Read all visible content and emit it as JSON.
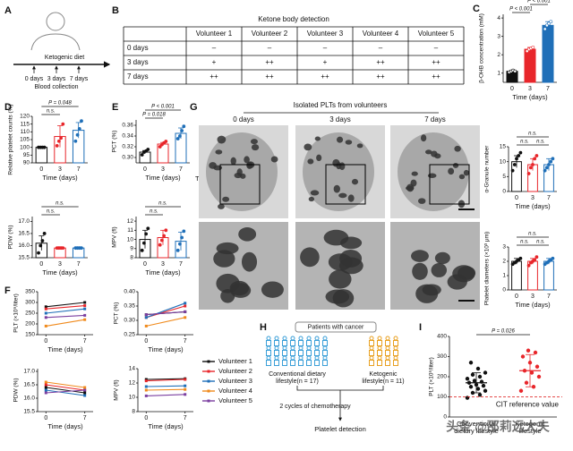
{
  "panel_labels": [
    "A",
    "B",
    "C",
    "D",
    "E",
    "F",
    "G",
    "H",
    "I"
  ],
  "A": {
    "diet": "Ketogenic diet",
    "days": [
      "0 days",
      "3 days",
      "7 days"
    ],
    "collection": "Blood collection"
  },
  "B": {
    "title": "Ketone body detection",
    "columns": [
      "Volunteer 1",
      "Volunteer 2",
      "Volunteer 3",
      "Volunteer 4",
      "Volunteer 5"
    ],
    "rows": [
      {
        "label": "0 days",
        "cells": [
          "–",
          "–",
          "–",
          "–",
          "–"
        ]
      },
      {
        "label": "3 days",
        "cells": [
          "+",
          "++",
          "+",
          "++",
          "++"
        ]
      },
      {
        "label": "7 days",
        "cells": [
          "++",
          "++",
          "++",
          "++",
          "++"
        ]
      }
    ]
  },
  "legend": [
    {
      "name": "Volunteer 1",
      "color": "#111111"
    },
    {
      "name": "Volunteer 2",
      "color": "#e8262b"
    },
    {
      "name": "Volunteer 3",
      "color": "#1f6fb8"
    },
    {
      "name": "Volunteer 4",
      "color": "#f08a1c"
    },
    {
      "name": "Volunteer 5",
      "color": "#7b3fa0"
    }
  ],
  "charts": {
    "C": {
      "type": "bar",
      "ylabel": "β-OHB concentration (mM)",
      "xlabel": "Time (days)",
      "categories": [
        "0",
        "3",
        "7"
      ],
      "values": [
        1.1,
        2.3,
        3.6
      ],
      "errors": [
        0.05,
        0.1,
        0.2
      ],
      "points": [
        [
          1.05,
          1.1,
          1.15,
          1.1
        ],
        [
          2.2,
          2.3,
          2.35,
          2.4
        ],
        [
          3.4,
          3.6,
          3.7,
          3.8
        ]
      ],
      "colors": [
        "#111111",
        "#e8262b",
        "#1f6fb8"
      ],
      "ylim": [
        0.5,
        4.2
      ],
      "yticks": [
        1,
        2,
        3,
        4
      ],
      "annotations": [
        "P < 0.001",
        "P < 0.001",
        "P < 0.001"
      ]
    },
    "D1": {
      "type": "bar",
      "ylabel": "Relative platelet counts (%)",
      "xlabel": "Time (days)",
      "categories": [
        "0",
        "3",
        "7"
      ],
      "values": [
        100,
        107,
        111
      ],
      "errors": [
        0.5,
        7,
        5
      ],
      "points": [
        [
          100,
          100,
          100,
          100
        ],
        [
          101,
          104,
          106,
          115
        ],
        [
          104,
          108,
          112,
          117
        ]
      ],
      "colors": [
        "#111111",
        "#e8262b",
        "#1f6fb8"
      ],
      "ylim": [
        90,
        120
      ],
      "yticks": [
        90,
        95,
        100,
        105,
        110,
        115,
        120
      ],
      "annotations": [
        "n.s.",
        "P = 0.048"
      ]
    },
    "D2": {
      "type": "bar",
      "ylabel": "PDW (%)",
      "xlabel": "Time (days)",
      "categories": [
        "0",
        "3",
        "7"
      ],
      "values": [
        16.1,
        15.9,
        15.9
      ],
      "errors": [
        0.3,
        0.05,
        0.05
      ],
      "points": [
        [
          15.7,
          16.0,
          16.2,
          16.5
        ],
        [
          15.9,
          15.9,
          15.9,
          15.9
        ],
        [
          15.9,
          15.9,
          15.9,
          15.9
        ]
      ],
      "colors": [
        "#111111",
        "#e8262b",
        "#1f6fb8"
      ],
      "ylim": [
        15.5,
        17.2
      ],
      "yticks": [
        15.5,
        {
          "value": 16,
          "label": "16.0"
        },
        16.5,
        {
          "value": 17,
          "label": "17.0"
        }
      ],
      "annotations": [
        "n.s.",
        "n.s."
      ]
    },
    "E1": {
      "type": "bar",
      "ylabel": "PCT (%)",
      "xlabel": "Time (days)",
      "categories": [
        "0",
        "3",
        "7"
      ],
      "values": [
        0.31,
        0.325,
        0.345
      ],
      "errors": [
        0.003,
        0.003,
        0.01
      ],
      "points": [
        [
          0.305,
          0.31,
          0.312,
          0.315
        ],
        [
          0.32,
          0.324,
          0.327,
          0.33
        ],
        [
          0.335,
          0.34,
          0.35,
          0.358
        ]
      ],
      "colors": [
        "#111111",
        "#e8262b",
        "#1f6fb8"
      ],
      "ylim": [
        0.29,
        0.37
      ],
      "yticks": [
        {
          "value": 0.3,
          "label": "0.30"
        },
        0.32,
        0.34,
        0.36
      ],
      "annotations": [
        "P = 0.018",
        "P < 0.001"
      ]
    },
    "E2": {
      "type": "bar",
      "ylabel": "MPV (fl)",
      "xlabel": "Time (days)",
      "categories": [
        "0",
        "3",
        "7"
      ],
      "values": [
        10,
        10.2,
        9.8
      ],
      "errors": [
        1,
        0.8,
        1
      ],
      "points": [
        [
          8.8,
          9.6,
          10.6,
          11.2
        ],
        [
          9.4,
          9.9,
          10.4,
          11
        ],
        [
          8.8,
          9.5,
          10.2,
          10.9
        ]
      ],
      "colors": [
        "#111111",
        "#e8262b",
        "#1f6fb8"
      ],
      "ylim": [
        8,
        12.5
      ],
      "yticks": [
        8,
        9,
        10,
        11,
        12
      ],
      "annotations": [
        "n.s.",
        "n.s."
      ]
    },
    "F1": {
      "type": "line",
      "ylabel": "PLT (×10⁹/liter)",
      "xlabel": "Time (days)",
      "x": [
        0,
        7
      ],
      "xlim": [
        -1.5,
        8.5
      ],
      "xticks": [
        0,
        7
      ],
      "ylim": [
        150,
        350
      ],
      "yticks": [
        150,
        200,
        250,
        300,
        350
      ],
      "series": [
        {
          "values": [
            280,
            300
          ]
        },
        {
          "values": [
            270,
            285
          ]
        },
        {
          "values": [
            250,
            270
          ]
        },
        {
          "values": [
            190,
            220
          ]
        },
        {
          "values": [
            230,
            240
          ]
        }
      ]
    },
    "F2": {
      "type": "line",
      "ylabel": "PCT (%)",
      "xlabel": "Time (days)",
      "x": [
        0,
        7
      ],
      "xlim": [
        -1.5,
        8.5
      ],
      "xticks": [
        0,
        7
      ],
      "ylim": [
        0.25,
        0.4
      ],
      "yticks": [
        0.25,
        {
          "value": 0.3,
          "label": "0.30"
        },
        0.35,
        {
          "value": 0.4,
          "label": "0.40"
        }
      ],
      "series": [
        {
          "values": [
            0.32,
            0.33
          ]
        },
        {
          "values": [
            0.31,
            0.35
          ]
        },
        {
          "values": [
            0.31,
            0.36
          ]
        },
        {
          "values": [
            0.28,
            0.31
          ]
        },
        {
          "values": [
            0.32,
            0.33
          ]
        }
      ]
    },
    "F3": {
      "type": "line",
      "ylabel": "PDW (%)",
      "xlabel": "Time (days)",
      "x": [
        0,
        7
      ],
      "xlim": [
        -1.5,
        8.5
      ],
      "xticks": [
        0,
        7
      ],
      "ylim": [
        15.5,
        17.1
      ],
      "yticks": [
        15.5,
        {
          "value": 16,
          "label": "16.0"
        },
        16.5,
        {
          "value": 17,
          "label": "17.0"
        }
      ],
      "series": [
        {
          "values": [
            16.4,
            16.2
          ]
        },
        {
          "values": [
            16.5,
            16.3
          ]
        },
        {
          "values": [
            16.3,
            16.1
          ]
        },
        {
          "values": [
            16.6,
            16.4
          ]
        },
        {
          "values": [
            16.2,
            16.3
          ]
        }
      ]
    },
    "F4": {
      "type": "line",
      "ylabel": "MPV (fl)",
      "xlabel": "Time (days)",
      "x": [
        0,
        7
      ],
      "xlim": [
        -1.5,
        8.5
      ],
      "xticks": [
        0,
        7
      ],
      "ylim": [
        8,
        14
      ],
      "yticks": [
        8,
        10,
        12,
        14
      ],
      "series": [
        {
          "values": [
            12.5,
            12.6
          ]
        },
        {
          "values": [
            12.3,
            12.5
          ]
        },
        {
          "values": [
            11.5,
            11.6
          ]
        },
        {
          "values": [
            11,
            11.1
          ]
        },
        {
          "values": [
            10.2,
            10.4
          ]
        }
      ]
    },
    "G1": {
      "type": "bar",
      "ylabel": "α-Granule number",
      "xlabel": "Time (days)",
      "categories": [
        "0",
        "3",
        "7"
      ],
      "values": [
        10,
        9,
        9
      ],
      "errors": [
        2,
        2,
        2
      ],
      "points": [
        [
          7,
          9,
          11,
          12,
          13
        ],
        [
          6,
          8,
          9,
          11,
          12
        ],
        [
          7,
          8,
          9,
          10,
          11
        ]
      ],
      "colors": [
        "#111111",
        "#e8262b",
        "#1f6fb8"
      ],
      "ylim": [
        0,
        15
      ],
      "yticks": [
        0,
        5,
        10,
        15
      ],
      "annotations": [
        "n.s.",
        "n.s.",
        "n.s."
      ]
    },
    "G2": {
      "type": "bar",
      "ylabel": "Platelet diameters (×10³ μm)",
      "xlabel": "Time (days)",
      "categories": [
        "0",
        "3",
        "7"
      ],
      "values": [
        2,
        2,
        2
      ],
      "errors": [
        0.2,
        0.2,
        0.2
      ],
      "points": [
        [
          1.8,
          1.9,
          2,
          2.1,
          2.2
        ],
        [
          1.7,
          1.9,
          2,
          2.1,
          2.3
        ],
        [
          1.8,
          1.9,
          2,
          2.1,
          2.2
        ]
      ],
      "colors": [
        "#111111",
        "#e8262b",
        "#1f6fb8"
      ],
      "ylim": [
        0,
        3
      ],
      "yticks": [
        0,
        1,
        2,
        3
      ],
      "annotations": [
        "n.s.",
        "n.s.",
        "n.s."
      ]
    },
    "I": {
      "type": "scatter",
      "ylabel": "PLT (×10⁹/liter)",
      "categories": [
        [
          "Conventional",
          "dietary lifestyle"
        ],
        [
          "Ketogenic",
          "lifestyle"
        ]
      ],
      "values": [
        170,
        230
      ],
      "errors": [
        50,
        80
      ],
      "points": [
        [
          95,
          110,
          120,
          130,
          140,
          150,
          155,
          160,
          170,
          175,
          180,
          190,
          200,
          210,
          220,
          240,
          270
        ],
        [
          130,
          150,
          170,
          200,
          220,
          230,
          250,
          270,
          300,
          320,
          330
        ]
      ],
      "colors": [
        "#111111",
        "#e8262b"
      ],
      "ylim": [
        0,
        400
      ],
      "yticks": [
        0,
        100,
        200,
        300,
        400
      ],
      "annotations": [
        "P = 0.026"
      ],
      "reference_value": 100,
      "reference_label": "CIT reference value"
    }
  },
  "G": {
    "title": "Isolated PLTs from volunteers",
    "days": [
      "0 days",
      "3 days",
      "7 days"
    ],
    "method": "TEM"
  },
  "H": {
    "title": "Patients with cancer",
    "group1": [
      "Conventional dietary",
      "lifestyle(n = 17)"
    ],
    "group2": [
      "Ketogenic",
      "lifestyle(n = 11)"
    ],
    "step": "2 cycles of chemotherapy",
    "result": "Platelet detection"
  },
  "watermark": "头条 @邵莉远大夫"
}
